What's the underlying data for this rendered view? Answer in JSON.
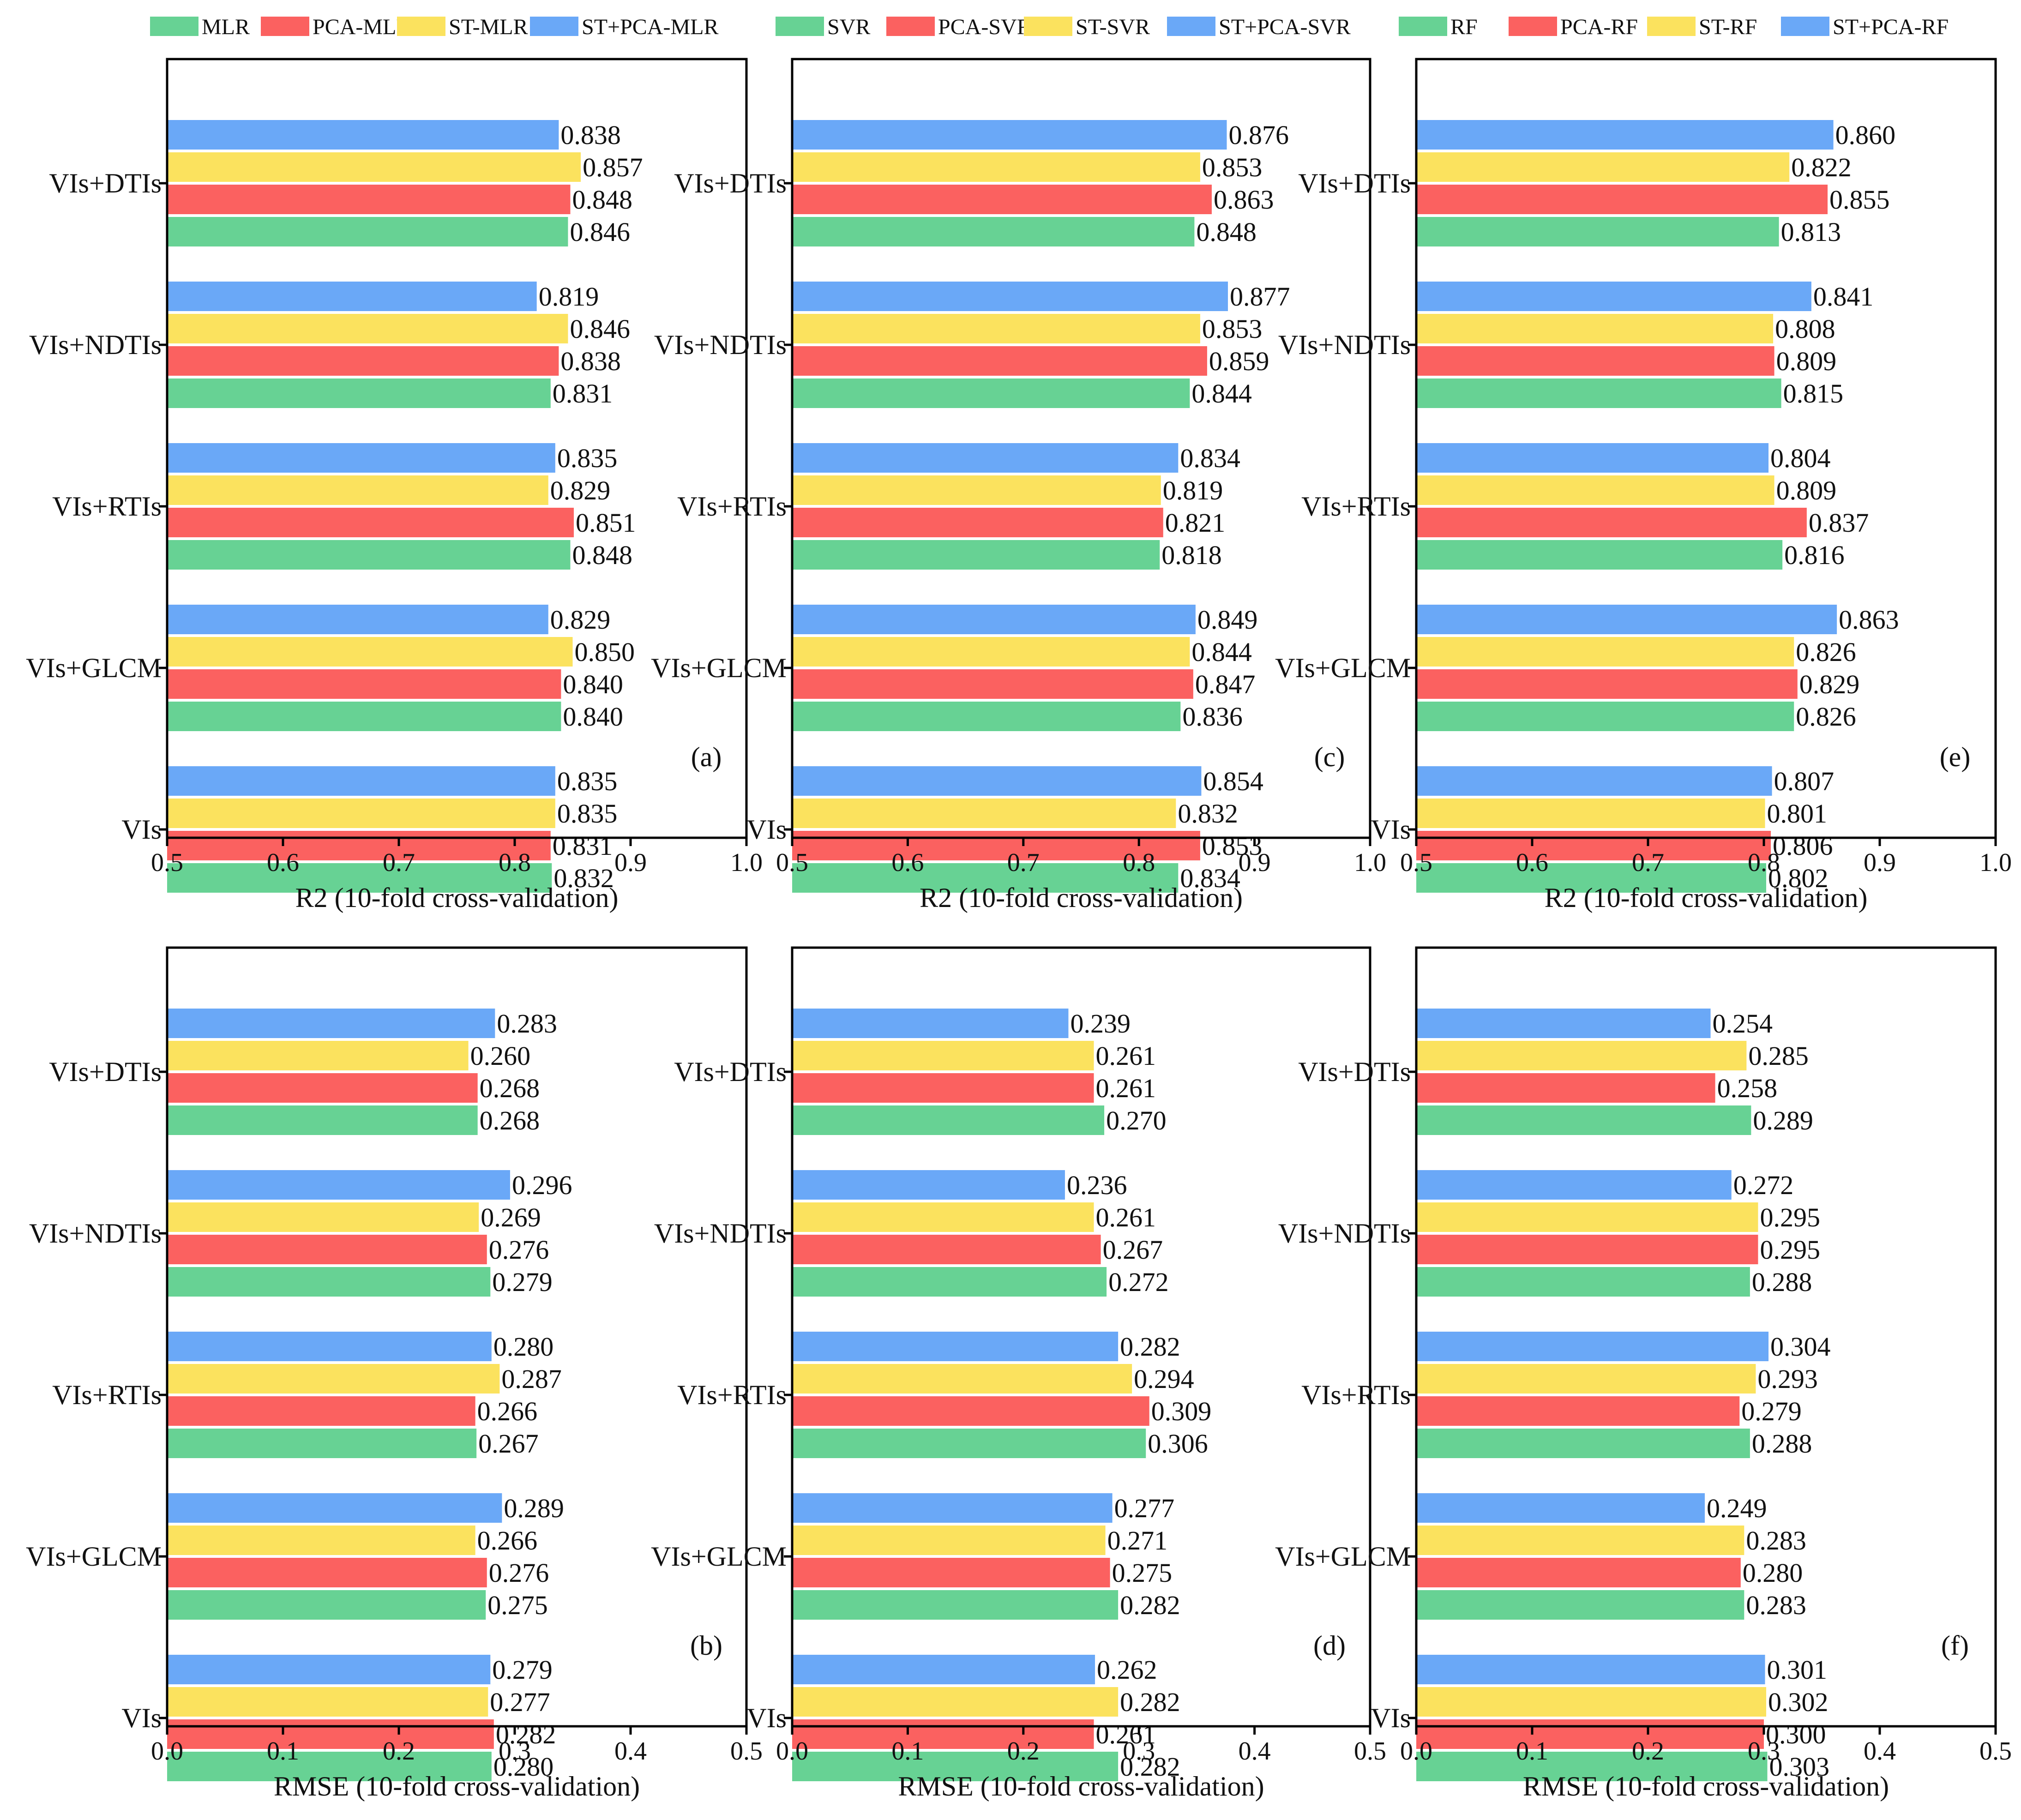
{
  "chart_data": [
    {
      "panel": "(a)",
      "type": "bar",
      "orientation": "horizontal",
      "categories": [
        "VIs+DTIs",
        "VIs+NDTIs",
        "VIs+RTIs",
        "VIs+GLCM",
        "VIs"
      ],
      "series": [
        {
          "name": "ST+PCA-MLR",
          "color": "#6aa8f7",
          "values": [
            0.838,
            0.819,
            0.835,
            0.829,
            0.835
          ],
          "labels": [
            "0.838",
            "0.819",
            "0.835",
            "0.829",
            "0.835"
          ]
        },
        {
          "name": "ST-MLR",
          "color": "#fbe25e",
          "values": [
            0.857,
            0.846,
            0.829,
            0.85,
            0.835
          ],
          "labels": [
            "0.857",
            "0.846",
            "0.829",
            "0.850",
            "0.835"
          ]
        },
        {
          "name": "PCA-MLR",
          "color": "#fb6160",
          "values": [
            0.848,
            0.838,
            0.851,
            0.84,
            0.831
          ],
          "labels": [
            "0.848",
            "0.838",
            "0.851",
            "0.840",
            "0.831"
          ]
        },
        {
          "name": "MLR",
          "color": "#67d294",
          "values": [
            0.846,
            0.831,
            0.848,
            0.84,
            0.832
          ],
          "labels": [
            "0.846",
            "0.831",
            "0.848",
            "0.840",
            "0.832"
          ]
        }
      ],
      "xlim": [
        0.5,
        1.0
      ],
      "xticks": [
        "0.5",
        "0.6",
        "0.7",
        "0.8",
        "0.9",
        "1.0"
      ],
      "xlabel": "R2 (10-fold cross-validation)"
    },
    {
      "panel": "(c)",
      "type": "bar",
      "orientation": "horizontal",
      "categories": [
        "VIs+DTIs",
        "VIs+NDTIs",
        "VIs+RTIs",
        "VIs+GLCM",
        "VIs"
      ],
      "series": [
        {
          "name": "ST+PCA-SVR",
          "color": "#6aa8f7",
          "values": [
            0.876,
            0.877,
            0.834,
            0.849,
            0.854
          ],
          "labels": [
            "0.876",
            "0.877",
            "0.834",
            "0.849",
            "0.854"
          ]
        },
        {
          "name": "ST-SVR",
          "color": "#fbe25e",
          "values": [
            0.853,
            0.853,
            0.819,
            0.844,
            0.832
          ],
          "labels": [
            "0.853",
            "0.853",
            "0.819",
            "0.844",
            "0.832"
          ]
        },
        {
          "name": "PCA-SVR",
          "color": "#fb6160",
          "values": [
            0.863,
            0.859,
            0.821,
            0.847,
            0.853
          ],
          "labels": [
            "0.863",
            "0.859",
            "0.821",
            "0.847",
            "0.853"
          ]
        },
        {
          "name": "SVR",
          "color": "#67d294",
          "values": [
            0.848,
            0.844,
            0.818,
            0.836,
            0.834
          ],
          "labels": [
            "0.848",
            "0.844",
            "0.818",
            "0.836",
            "0.834"
          ]
        }
      ],
      "xlim": [
        0.5,
        1.0
      ],
      "xticks": [
        "0.5",
        "0.6",
        "0.7",
        "0.8",
        "0.9",
        "1.0"
      ],
      "xlabel": "R2 (10-fold cross-validation)"
    },
    {
      "panel": "(e)",
      "type": "bar",
      "orientation": "horizontal",
      "categories": [
        "VIs+DTIs",
        "VIs+NDTIs",
        "VIs+RTIs",
        "VIs+GLCM",
        "VIs"
      ],
      "series": [
        {
          "name": "ST+PCA-RF",
          "color": "#6aa8f7",
          "values": [
            0.86,
            0.841,
            0.804,
            0.863,
            0.807
          ],
          "labels": [
            "0.860",
            "0.841",
            "0.804",
            "0.863",
            "0.807"
          ]
        },
        {
          "name": "ST-RF",
          "color": "#fbe25e",
          "values": [
            0.822,
            0.808,
            0.809,
            0.826,
            0.801
          ],
          "labels": [
            "0.822",
            "0.808",
            "0.809",
            "0.826",
            "0.801"
          ]
        },
        {
          "name": "PCA-RF",
          "color": "#fb6160",
          "values": [
            0.855,
            0.809,
            0.837,
            0.829,
            0.806
          ],
          "labels": [
            "0.855",
            "0.809",
            "0.837",
            "0.829",
            "0.806"
          ]
        },
        {
          "name": "RF",
          "color": "#67d294",
          "values": [
            0.813,
            0.815,
            0.816,
            0.826,
            0.802
          ],
          "labels": [
            "0.813",
            "0.815",
            "0.816",
            "0.826",
            "0.802"
          ]
        }
      ],
      "xlim": [
        0.5,
        1.0
      ],
      "xticks": [
        "0.5",
        "0.6",
        "0.7",
        "0.8",
        "0.9",
        "1.0"
      ],
      "xlabel": "R2 (10-fold cross-validation)"
    },
    {
      "panel": "(b)",
      "type": "bar",
      "orientation": "horizontal",
      "categories": [
        "VIs+DTIs",
        "VIs+NDTIs",
        "VIs+RTIs",
        "VIs+GLCM",
        "VIs"
      ],
      "series": [
        {
          "name": "ST+PCA-MLR",
          "color": "#6aa8f7",
          "values": [
            0.283,
            0.296,
            0.28,
            0.289,
            0.279
          ],
          "labels": [
            "0.283",
            "0.296",
            "0.280",
            "0.289",
            "0.279"
          ]
        },
        {
          "name": "ST-MLR",
          "color": "#fbe25e",
          "values": [
            0.26,
            0.269,
            0.287,
            0.266,
            0.277
          ],
          "labels": [
            "0.260",
            "0.269",
            "0.287",
            "0.266",
            "0.277"
          ]
        },
        {
          "name": "PCA-MLR",
          "color": "#fb6160",
          "values": [
            0.268,
            0.276,
            0.266,
            0.276,
            0.282
          ],
          "labels": [
            "0.268",
            "0.276",
            "0.266",
            "0.276",
            "0.282"
          ]
        },
        {
          "name": "MLR",
          "color": "#67d294",
          "values": [
            0.268,
            0.279,
            0.267,
            0.275,
            0.28
          ],
          "labels": [
            "0.268",
            "0.279",
            "0.267",
            "0.275",
            "0.280"
          ]
        }
      ],
      "xlim": [
        0.0,
        0.5
      ],
      "xticks": [
        "0.0",
        "0.1",
        "0.2",
        "0.3",
        "0.4",
        "0.5"
      ],
      "xlabel": "RMSE (10-fold cross-validation)"
    },
    {
      "panel": "(d)",
      "type": "bar",
      "orientation": "horizontal",
      "categories": [
        "VIs+DTIs",
        "VIs+NDTIs",
        "VIs+RTIs",
        "VIs+GLCM",
        "VIs"
      ],
      "series": [
        {
          "name": "ST+PCA-SVR",
          "color": "#6aa8f7",
          "values": [
            0.239,
            0.236,
            0.282,
            0.277,
            0.262
          ],
          "labels": [
            "0.239",
            "0.236",
            "0.282",
            "0.277",
            "0.262"
          ]
        },
        {
          "name": "ST-SVR",
          "color": "#fbe25e",
          "values": [
            0.261,
            0.261,
            0.294,
            0.271,
            0.282
          ],
          "labels": [
            "0.261",
            "0.261",
            "0.294",
            "0.271",
            "0.282"
          ]
        },
        {
          "name": "PCA-SVR",
          "color": "#fb6160",
          "values": [
            0.261,
            0.267,
            0.309,
            0.275,
            0.261
          ],
          "labels": [
            "0.261",
            "0.267",
            "0.309",
            "0.275",
            "0.261"
          ]
        },
        {
          "name": "SVR",
          "color": "#67d294",
          "values": [
            0.27,
            0.272,
            0.306,
            0.282,
            0.282
          ],
          "labels": [
            "0.270",
            "0.272",
            "0.306",
            "0.282",
            "0.282"
          ]
        }
      ],
      "xlim": [
        0.0,
        0.5
      ],
      "xticks": [
        "0.0",
        "0.1",
        "0.2",
        "0.3",
        "0.4",
        "0.5"
      ],
      "xlabel": "RMSE (10-fold cross-validation)"
    },
    {
      "panel": "(f)",
      "type": "bar",
      "orientation": "horizontal",
      "categories": [
        "VIs+DTIs",
        "VIs+NDTIs",
        "VIs+RTIs",
        "VIs+GLCM",
        "VIs"
      ],
      "series": [
        {
          "name": "ST+PCA-RF",
          "color": "#6aa8f7",
          "values": [
            0.254,
            0.272,
            0.304,
            0.249,
            0.301
          ],
          "labels": [
            "0.254",
            "0.272",
            "0.304",
            "0.249",
            "0.301"
          ]
        },
        {
          "name": "ST-RF",
          "color": "#fbe25e",
          "values": [
            0.285,
            0.295,
            0.293,
            0.283,
            0.302
          ],
          "labels": [
            "0.285",
            "0.295",
            "0.293",
            "0.283",
            "0.302"
          ]
        },
        {
          "name": "PCA-RF",
          "color": "#fb6160",
          "values": [
            0.258,
            0.295,
            0.279,
            0.28,
            0.3
          ],
          "labels": [
            "0.258",
            "0.295",
            "0.279",
            "0.280",
            "0.300"
          ]
        },
        {
          "name": "RF",
          "color": "#67d294",
          "values": [
            0.289,
            0.288,
            0.288,
            0.283,
            0.303
          ],
          "labels": [
            "0.289",
            "0.288",
            "0.288",
            "0.283",
            "0.303"
          ]
        }
      ],
      "xlim": [
        0.0,
        0.5
      ],
      "xticks": [
        "0.0",
        "0.1",
        "0.2",
        "0.3",
        "0.4",
        "0.5"
      ],
      "xlabel": "RMSE (10-fold cross-validation)"
    }
  ],
  "legends": [
    [
      {
        "label": "MLR",
        "color": "#67d294"
      },
      {
        "label": "PCA-MLR",
        "color": "#fb6160"
      },
      {
        "label": "ST-MLR",
        "color": "#fbe25e"
      },
      {
        "label": "ST+PCA-MLR",
        "color": "#6aa8f7"
      }
    ],
    [
      {
        "label": "SVR",
        "color": "#67d294"
      },
      {
        "label": "PCA-SVR",
        "color": "#fb6160"
      },
      {
        "label": "ST-SVR",
        "color": "#fbe25e"
      },
      {
        "label": "ST+PCA-SVR",
        "color": "#6aa8f7"
      }
    ],
    [
      {
        "label": "RF",
        "color": "#67d294"
      },
      {
        "label": "PCA-RF",
        "color": "#fb6160"
      },
      {
        "label": "ST-RF",
        "color": "#fbe25e"
      },
      {
        "label": "ST+PCA-RF",
        "color": "#6aa8f7"
      }
    ]
  ]
}
